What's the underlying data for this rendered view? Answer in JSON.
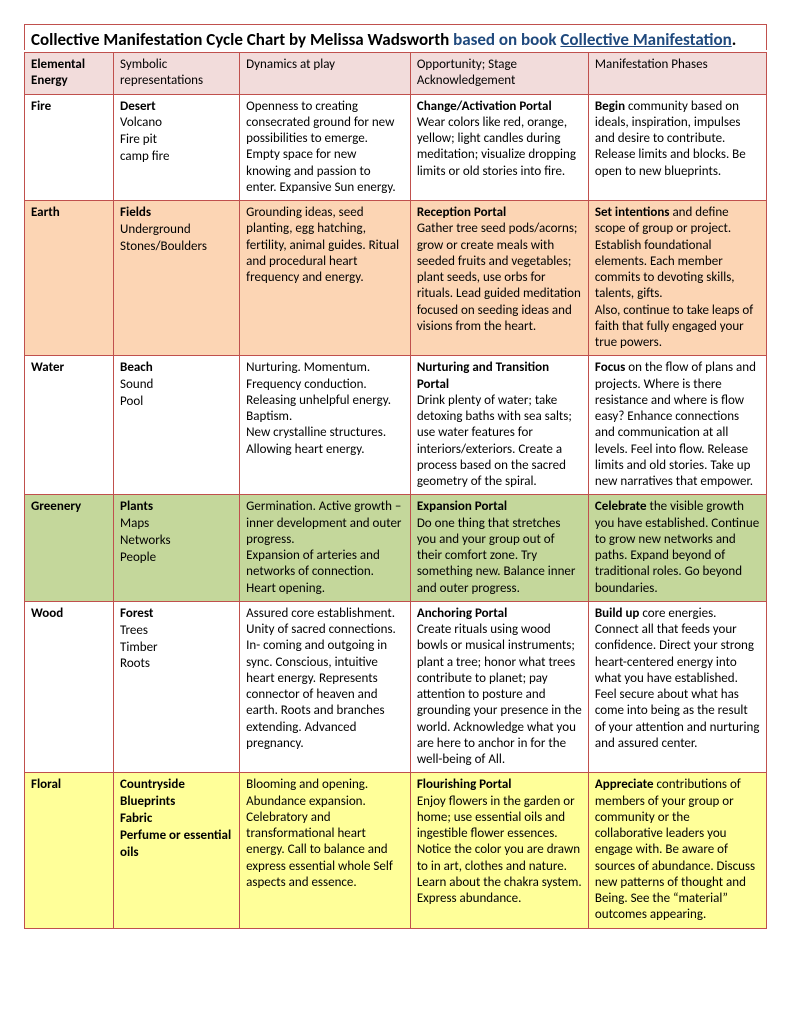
{
  "title_prefix": "Collective Manifestation Cycle Chart by Melissa Wadsworth ",
  "title_based": "based on book ",
  "title_link": "Collective Manifestation",
  "title_suffix": ".",
  "headers": {
    "c1": "Elemental Energy",
    "c2": "Symbolic representations",
    "c3": "Dynamics at play",
    "c4": "Opportunity; Stage Acknowledgement",
    "c5": "Manifestation Phases"
  },
  "rows": [
    {
      "key": "fire",
      "c1": "Fire",
      "sym_lead": "Desert",
      "sym_rest": "Volcano\nFire pit\ncamp fire",
      "c3": "Openness to creating consecrated ground for new possibilities to emerge. Empty space for new knowing and passion to enter. Expansive Sun energy.",
      "c4_lead": "Change/Activation Portal",
      "c4_rest": "Wear colors like red, orange, yellow; light candles during meditation; visualize dropping limits or old stories into fire.",
      "c5_lead": "Begin",
      "c5_rest": " community based on ideals, inspiration, impulses and desire to contribute. Release limits and blocks. Be open to new blueprints."
    },
    {
      "key": "earth",
      "c1": "Earth",
      "sym_lead": "Fields",
      "sym_rest": "Underground\nStones/Boulders",
      "c3": "Grounding ideas, seed planting, egg hatching, fertility, animal guides. Ritual and procedural heart frequency and energy.",
      "c4_lead": "Reception Portal",
      "c4_rest": "Gather tree seed pods/acorns; grow or create meals with seeded fruits and vegetables; plant seeds, use orbs for rituals. Lead guided meditation focused on seeding ideas and visions from the heart.",
      "c5_lead": "Set intentions",
      "c5_rest": " and define scope of group or project. Establish foundational elements. Each member commits to devoting skills, talents, gifts.\nAlso, continue to take leaps of faith that fully engaged your true powers."
    },
    {
      "key": "water",
      "c1": "Water",
      "sym_lead": "Beach",
      "sym_rest": "Sound\nPool",
      "c3": "Nurturing. Momentum. Frequency conduction. Releasing unhelpful energy. Baptism.\nNew crystalline structures. Allowing heart energy.",
      "c4_lead": "Nurturing and Transition Portal",
      "c4_rest": "Drink plenty of water; take detoxing baths with sea salts; use water features for interiors/exteriors. Create a process based on the sacred geometry of the spiral.",
      "c5_lead": "Focus",
      "c5_rest": " on the flow of plans and projects. Where is there resistance and where is flow easy? Enhance connections and communication at all levels. Feel into flow. Release limits and old stories. Take up new narratives that empower."
    },
    {
      "key": "greenery",
      "c1": "Greenery",
      "sym_lead": "Plants",
      "sym_rest": "Maps\nNetworks\nPeople",
      "c3": "Germination. Active growth – inner development and outer progress.\nExpansion of arteries and networks of connection. Heart opening.",
      "c4_lead": "Expansion Portal",
      "c4_rest": "Do one thing that stretches you and your group out of their comfort zone. Try something new. Balance inner and outer progress.",
      "c5_lead": "Celebrate",
      "c5_rest": " the visible growth you have established. Continue to grow new networks and paths. Expand beyond of traditional roles. Go beyond boundaries."
    },
    {
      "key": "wood",
      "c1": "Wood",
      "sym_lead": "Forest",
      "sym_rest": "Trees\nTimber\nRoots",
      "c3": "Assured core establishment. Unity of sacred connections.\nIn- coming and outgoing in sync. Conscious, intuitive heart energy. Represents connector of heaven and earth. Roots and branches extending. Advanced pregnancy.",
      "c4_lead": "Anchoring Portal",
      "c4_rest": "Create rituals using wood bowls or musical instruments; plant a tree; honor what trees contribute to planet; pay attention to posture and grounding your presence in the world. Acknowledge what you are here to anchor in for the well-being of All.",
      "c5_lead": "Build up",
      "c5_rest": " core energies. Connect all that feeds your confidence. Direct your strong heart-centered energy into what you have established. Feel secure about what has come into being as the result of your attention and nurturing and assured center."
    },
    {
      "key": "floral",
      "c1": "Floral",
      "sym_lead": "Countryside\nBlueprints\nFabric\nPerfume or essential oils",
      "sym_rest": "",
      "c3": "Blooming and opening. Abundance expansion. Celebratory and transformational heart energy. Call to balance and express essential whole Self aspects and essence.",
      "c4_lead": "Flourishing Portal",
      "c4_rest": "Enjoy flowers in the garden or home; use essential oils and ingestible flower essences. Notice the color you are drawn to in art, clothes and nature. Learn about the chakra system. Express abundance.",
      "c5_lead": "Appreciate",
      "c5_rest": " contributions of members of your group or community or the collaborative leaders you engage with. Be aware of sources of abundance. Discuss new patterns of thought and Being. See the “material” outcomes appearing."
    }
  ],
  "row_classes": {
    "fire": "",
    "earth": "row-earth",
    "water": "",
    "greenery": "row-green",
    "wood": "",
    "floral": "row-floral"
  }
}
